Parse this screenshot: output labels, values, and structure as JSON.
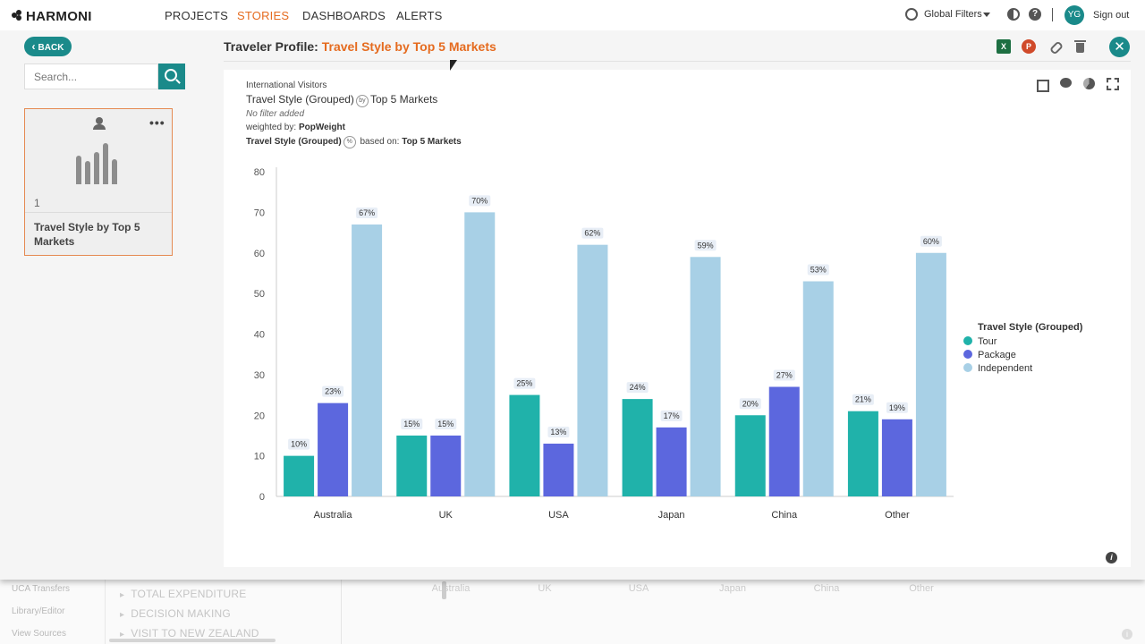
{
  "app": {
    "logo": "HARMONI",
    "nav": [
      "PROJECTS",
      "STORIES",
      "DASHBOARDS",
      "ALERTS"
    ],
    "active_nav": "STORIES",
    "global_filters": "Global Filters",
    "user_initials": "YG",
    "sign_out": "Sign out"
  },
  "sidebar": {
    "back_label": "BACK",
    "search_placeholder": "Search...",
    "cards": [
      {
        "number": "1",
        "title": "Travel Style by Top 5 Markets"
      }
    ]
  },
  "main": {
    "title_prefix": "Traveler Profile:",
    "title_accent": "Travel Style by Top 5 Markets",
    "actions": {
      "excel": "X",
      "ppt": "P"
    }
  },
  "chart_meta": {
    "dataset": "International Visitors",
    "title_left": "Travel Style (Grouped)",
    "by_badge": "by",
    "title_right": "Top 5 Markets",
    "filter": "No filter added",
    "weighted_prefix": "weighted by:",
    "weighted_value": "PopWeight",
    "base_left": "Travel Style (Grouped)",
    "pct_badge": "%",
    "base_mid": "based on:",
    "base_value": "Top 5 Markets",
    "info": "i"
  },
  "chart_data": {
    "type": "bar",
    "categories": [
      "Australia",
      "UK",
      "USA",
      "Japan",
      "China",
      "Other"
    ],
    "series": [
      {
        "name": "Tour",
        "color": "#20b2aa",
        "values": [
          10,
          15,
          25,
          24,
          20,
          21
        ]
      },
      {
        "name": "Package",
        "color": "#5c67de",
        "values": [
          23,
          15,
          13,
          17,
          27,
          19
        ]
      },
      {
        "name": "Independent",
        "color": "#a8d0e6",
        "values": [
          67,
          70,
          62,
          59,
          53,
          60
        ]
      }
    ],
    "ylim": [
      0,
      80
    ],
    "yticks": [
      0,
      10,
      20,
      30,
      40,
      50,
      60,
      70,
      80
    ],
    "data_label_suffix": "%",
    "legend_title": "Travel Style (Grouped)",
    "legend_position": "right",
    "grid": false
  },
  "background": {
    "left_items": [
      "UCA Transfers",
      "Library/Editor",
      "View Sources"
    ],
    "tree_items": [
      "TOTAL EXPENDITURE",
      "DECISION MAKING",
      "VISIT TO NEW ZEALAND"
    ],
    "categories": [
      "Australia",
      "UK",
      "USA",
      "Japan",
      "China",
      "Other"
    ],
    "info": "i"
  }
}
